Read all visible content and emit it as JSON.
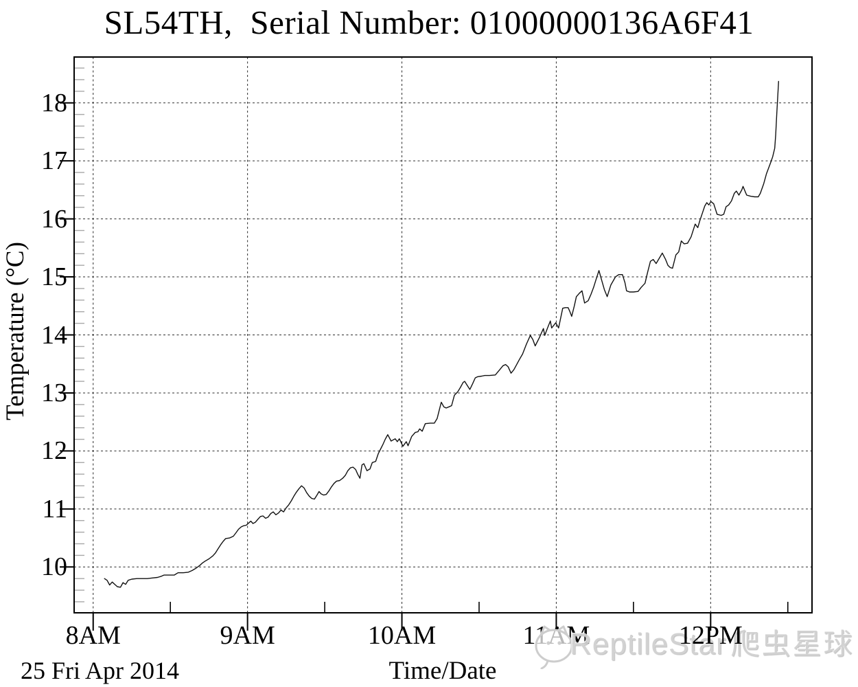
{
  "title": "SL54TH,  Serial Number: 01000000136A6F41",
  "watermark": {
    "latin": "ReptileStar",
    "cjk": "爬虫星球",
    "color": "#d0d0d0"
  },
  "chart_data": {
    "type": "line",
    "title": "SL54TH,  Serial Number: 01000000136A6F41",
    "xlabel": "Time/Date",
    "ylabel": "Temperature (°C)",
    "date_label": "25 Fri Apr 2014",
    "x_unit": "minutes after 8:00 AM on 25 Fri Apr 2014",
    "xlim": [
      -7.4,
      279.4
    ],
    "ylim": [
      9.21,
      18.79
    ],
    "grid": "dotted lines at major ticks",
    "legend": "none",
    "x_ticks": [
      {
        "t": 0,
        "label": "8AM"
      },
      {
        "t": 60,
        "label": "9AM"
      },
      {
        "t": 120,
        "label": "10AM"
      },
      {
        "t": 180,
        "label": "11AM",
        "under_watermark": true
      },
      {
        "t": 240,
        "label": "12PM"
      }
    ],
    "x_minor_ticks": [
      30,
      90,
      150,
      210,
      270
    ],
    "y_ticks": [
      10,
      11,
      12,
      13,
      14,
      15,
      16,
      17,
      18
    ],
    "y_minor_step": 0.2,
    "series": [
      {
        "name": "Temperature",
        "color": "#111111",
        "points": [
          [
            4.4,
            9.8
          ],
          [
            5.4,
            9.77
          ],
          [
            6.4,
            9.69
          ],
          [
            7.4,
            9.74
          ],
          [
            8.4,
            9.7
          ],
          [
            9.4,
            9.66
          ],
          [
            10.6,
            9.65
          ],
          [
            11.6,
            9.73
          ],
          [
            12.6,
            9.7
          ],
          [
            13.6,
            9.77
          ],
          [
            15,
            9.79
          ],
          [
            17,
            9.8
          ],
          [
            19,
            9.8
          ],
          [
            21,
            9.8
          ],
          [
            23,
            9.81
          ],
          [
            25,
            9.82
          ],
          [
            26.5,
            9.84
          ],
          [
            27.5,
            9.86
          ],
          [
            29.5,
            9.86
          ],
          [
            31.5,
            9.86
          ],
          [
            33,
            9.9
          ],
          [
            35,
            9.9
          ],
          [
            37,
            9.91
          ],
          [
            38.5,
            9.94
          ],
          [
            40,
            9.98
          ],
          [
            41.5,
            10.03
          ],
          [
            42.5,
            10.07
          ],
          [
            43.5,
            10.1
          ],
          [
            45,
            10.14
          ],
          [
            46.5,
            10.19
          ],
          [
            47.5,
            10.24
          ],
          [
            48.5,
            10.31
          ],
          [
            49.5,
            10.38
          ],
          [
            50.5,
            10.44
          ],
          [
            51.5,
            10.49
          ],
          [
            53,
            10.5
          ],
          [
            54.5,
            10.53
          ],
          [
            55.5,
            10.59
          ],
          [
            56.5,
            10.65
          ],
          [
            57.5,
            10.69
          ],
          [
            58.5,
            10.71
          ],
          [
            59.5,
            10.72
          ],
          [
            60.5,
            10.76
          ],
          [
            61.3,
            10.79
          ],
          [
            62.1,
            10.75
          ],
          [
            63,
            10.77
          ],
          [
            64,
            10.82
          ],
          [
            65,
            10.87
          ],
          [
            66,
            10.88
          ],
          [
            67,
            10.84
          ],
          [
            68,
            10.86
          ],
          [
            69,
            10.92
          ],
          [
            70,
            10.95
          ],
          [
            71,
            10.9
          ],
          [
            72,
            10.93
          ],
          [
            73,
            10.98
          ],
          [
            74,
            10.95
          ],
          [
            75,
            11.02
          ],
          [
            76,
            11.07
          ],
          [
            77,
            11.14
          ],
          [
            78,
            11.22
          ],
          [
            79,
            11.29
          ],
          [
            80,
            11.35
          ],
          [
            81,
            11.4
          ],
          [
            82,
            11.36
          ],
          [
            83,
            11.28
          ],
          [
            84,
            11.22
          ],
          [
            85,
            11.18
          ],
          [
            86,
            11.17
          ],
          [
            87,
            11.24
          ],
          [
            87.8,
            11.3
          ],
          [
            88.6,
            11.26
          ],
          [
            89.6,
            11.24
          ],
          [
            90.6,
            11.25
          ],
          [
            91.6,
            11.31
          ],
          [
            92.6,
            11.38
          ],
          [
            93.6,
            11.44
          ],
          [
            94.6,
            11.48
          ],
          [
            95.8,
            11.49
          ],
          [
            97,
            11.53
          ],
          [
            98,
            11.58
          ],
          [
            99,
            11.66
          ],
          [
            100,
            11.71
          ],
          [
            101,
            11.72
          ],
          [
            102,
            11.68
          ],
          [
            102.8,
            11.6
          ],
          [
            103.7,
            11.53
          ],
          [
            104.5,
            11.76
          ],
          [
            105.2,
            11.78
          ],
          [
            106.4,
            11.66
          ],
          [
            107.6,
            11.69
          ],
          [
            108.5,
            11.8
          ],
          [
            109.8,
            11.82
          ],
          [
            110.8,
            11.95
          ],
          [
            111.8,
            12.04
          ],
          [
            112.6,
            12.11
          ],
          [
            113.5,
            12.2
          ],
          [
            114.5,
            12.28
          ],
          [
            115.8,
            12.17
          ],
          [
            116.6,
            12.19
          ],
          [
            117.4,
            12.21
          ],
          [
            118.2,
            12.16
          ],
          [
            119,
            12.21
          ],
          [
            120.4,
            12.08
          ],
          [
            121.7,
            12.16
          ],
          [
            122.4,
            12.09
          ],
          [
            123.8,
            12.25
          ],
          [
            125.2,
            12.32
          ],
          [
            126.2,
            12.33
          ],
          [
            126.9,
            12.38
          ],
          [
            127.9,
            12.34
          ],
          [
            129.1,
            12.47
          ],
          [
            131,
            12.48
          ],
          [
            132.6,
            12.48
          ],
          [
            133.7,
            12.56
          ],
          [
            134.6,
            12.72
          ],
          [
            135.3,
            12.84
          ],
          [
            136.3,
            12.76
          ],
          [
            137.2,
            12.74
          ],
          [
            138.3,
            12.76
          ],
          [
            139.3,
            12.78
          ],
          [
            140.4,
            12.96
          ],
          [
            141.7,
            13.02
          ],
          [
            142.8,
            13.1
          ],
          [
            143.8,
            13.18
          ],
          [
            144.4,
            13.2
          ],
          [
            145.4,
            13.13
          ],
          [
            146.4,
            13.06
          ],
          [
            147.5,
            13.16
          ],
          [
            148.5,
            13.26
          ],
          [
            149.5,
            13.28
          ],
          [
            151,
            13.29
          ],
          [
            152.2,
            13.3
          ],
          [
            154,
            13.3
          ],
          [
            156.3,
            13.31
          ],
          [
            158,
            13.4
          ],
          [
            159.3,
            13.47
          ],
          [
            160.3,
            13.49
          ],
          [
            161.3,
            13.45
          ],
          [
            162.4,
            13.34
          ],
          [
            163.5,
            13.4
          ],
          [
            164.5,
            13.48
          ],
          [
            165.6,
            13.57
          ],
          [
            166.9,
            13.67
          ],
          [
            168.4,
            13.84
          ],
          [
            169.9,
            13.99
          ],
          [
            170.9,
            13.92
          ],
          [
            171.8,
            13.81
          ],
          [
            173.4,
            13.95
          ],
          [
            175,
            14.11
          ],
          [
            175.5,
            13.99
          ],
          [
            176.6,
            14.12
          ],
          [
            177.7,
            14.24
          ],
          [
            178.2,
            14.12
          ],
          [
            179.8,
            14.21
          ],
          [
            180.9,
            14.12
          ],
          [
            182.5,
            14.46
          ],
          [
            183.5,
            14.47
          ],
          [
            184.6,
            14.47
          ],
          [
            185.3,
            14.4
          ],
          [
            186,
            14.32
          ],
          [
            187,
            14.5
          ],
          [
            187.8,
            14.66
          ],
          [
            189,
            14.72
          ],
          [
            190,
            14.76
          ],
          [
            191,
            14.55
          ],
          [
            192.4,
            14.59
          ],
          [
            193.5,
            14.7
          ],
          [
            194.5,
            14.82
          ],
          [
            195.5,
            14.96
          ],
          [
            196.6,
            15.11
          ],
          [
            197.6,
            14.95
          ],
          [
            198.7,
            14.78
          ],
          [
            199.8,
            14.66
          ],
          [
            201.2,
            14.86
          ],
          [
            203,
            15.0
          ],
          [
            204.3,
            15.04
          ],
          [
            205.7,
            15.04
          ],
          [
            206.7,
            14.9
          ],
          [
            207.3,
            14.76
          ],
          [
            208.5,
            14.74
          ],
          [
            210,
            14.74
          ],
          [
            211.8,
            14.75
          ],
          [
            213,
            14.82
          ],
          [
            214.5,
            14.89
          ],
          [
            215.5,
            15.08
          ],
          [
            216.6,
            15.27
          ],
          [
            217.7,
            15.3
          ],
          [
            218.8,
            15.23
          ],
          [
            220,
            15.32
          ],
          [
            221.2,
            15.41
          ],
          [
            222.5,
            15.3
          ],
          [
            223.4,
            15.2
          ],
          [
            224.3,
            15.16
          ],
          [
            225.2,
            15.15
          ],
          [
            226.5,
            15.38
          ],
          [
            227.6,
            15.43
          ],
          [
            228.6,
            15.62
          ],
          [
            229.7,
            15.57
          ],
          [
            231,
            15.58
          ],
          [
            232.4,
            15.69
          ],
          [
            234,
            15.91
          ],
          [
            235,
            15.85
          ],
          [
            235.8,
            15.97
          ],
          [
            236.8,
            16.1
          ],
          [
            237.7,
            16.22
          ],
          [
            238.5,
            16.28
          ],
          [
            239.3,
            16.24
          ],
          [
            240.1,
            16.3
          ],
          [
            241.2,
            16.26
          ],
          [
            242.5,
            16.08
          ],
          [
            244.1,
            16.06
          ],
          [
            245.1,
            16.08
          ],
          [
            246,
            16.21
          ],
          [
            247,
            16.24
          ],
          [
            248.1,
            16.31
          ],
          [
            249.2,
            16.44
          ],
          [
            250,
            16.48
          ],
          [
            251,
            16.41
          ],
          [
            252.1,
            16.5
          ],
          [
            252.6,
            16.56
          ],
          [
            254,
            16.41
          ],
          [
            255.6,
            16.39
          ],
          [
            257.1,
            16.38
          ],
          [
            258.5,
            16.38
          ],
          [
            259.3,
            16.44
          ],
          [
            260.6,
            16.6
          ],
          [
            261.7,
            16.78
          ],
          [
            263.3,
            16.97
          ],
          [
            264.1,
            17.07
          ],
          [
            264.9,
            17.22
          ],
          [
            265.3,
            17.45
          ],
          [
            265.7,
            17.8
          ],
          [
            266,
            18.05
          ],
          [
            266.4,
            18.37
          ]
        ]
      }
    ]
  }
}
